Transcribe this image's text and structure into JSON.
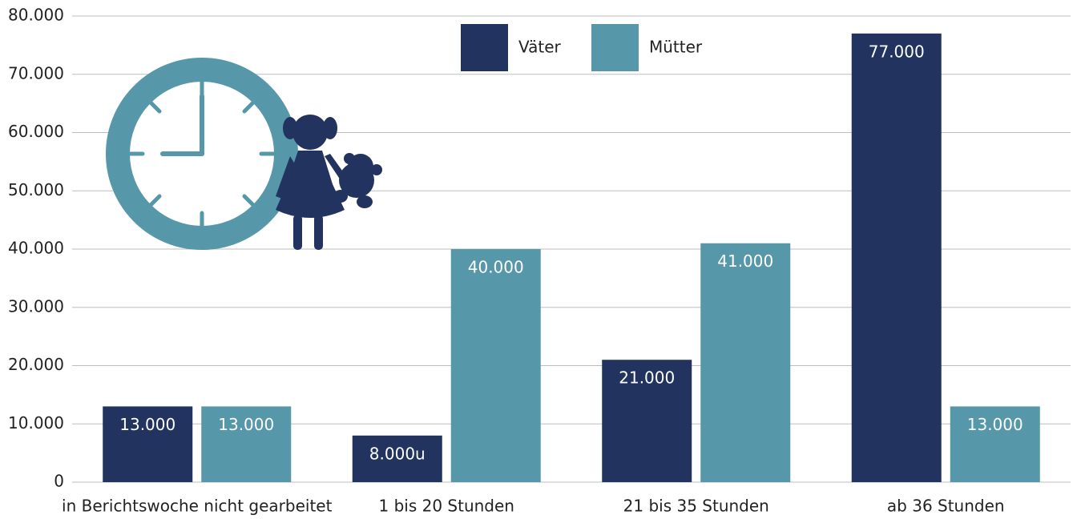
{
  "chart_data": {
    "type": "bar",
    "categories": [
      "in Berichtswoche nicht gearbeitet",
      "1 bis 20 Stunden",
      "21 bis 35 Stunden",
      "ab 36 Stunden"
    ],
    "series": [
      {
        "name": "Väter",
        "color": "#21335e",
        "values": [
          13000,
          8000,
          21000,
          77000
        ],
        "value_labels": [
          "13.000",
          "8.000u",
          "21.000",
          "77.000"
        ]
      },
      {
        "name": "Mütter",
        "color": "#5697aa",
        "values": [
          13000,
          40000,
          41000,
          13000
        ],
        "value_labels": [
          "13.000",
          "40.000",
          "41.000",
          "13.000"
        ]
      }
    ],
    "ylim": [
      0,
      80000
    ],
    "yticks": [
      0,
      {
        "value": 10000,
        "label": "10.000"
      },
      {
        "value": 20000,
        "label": "20.000"
      },
      {
        "value": 30000,
        "label": "30.000"
      },
      {
        "value": 40000,
        "label": "40.000"
      },
      {
        "value": 50000,
        "label": "50.000"
      },
      {
        "value": 60000,
        "label": "60.000"
      },
      {
        "value": 70000,
        "label": "70.000"
      },
      {
        "value": 80000,
        "label": "80.000"
      }
    ],
    "grid": true
  }
}
